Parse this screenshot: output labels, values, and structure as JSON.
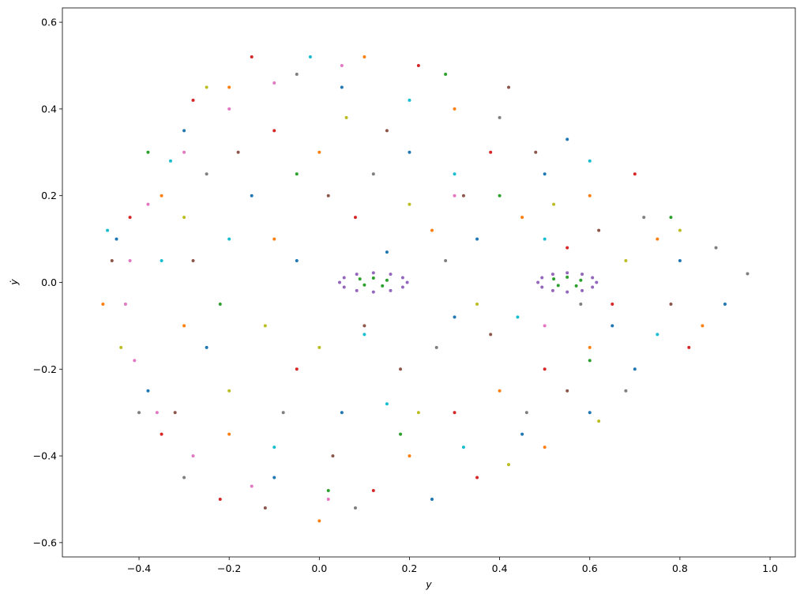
{
  "chart_data": {
    "type": "scatter",
    "xlabel": "y",
    "ylabel": "ẏ",
    "xlim": [
      -0.57,
      1.056
    ],
    "ylim": [
      -0.633,
      0.633
    ],
    "xticks": [
      {
        "value": -0.4,
        "label": "−0.4"
      },
      {
        "value": -0.2,
        "label": "−0.2"
      },
      {
        "value": 0,
        "label": "0.0"
      },
      0.2,
      0.4,
      0.6,
      0.8,
      {
        "value": 1,
        "label": "1.0"
      }
    ],
    "yticks": [
      {
        "value": -0.6,
        "label": "−0.6"
      },
      {
        "value": -0.4,
        "label": "−0.4"
      },
      {
        "value": -0.2,
        "label": "−0.2"
      },
      {
        "value": 0,
        "label": "0.0"
      },
      0.2,
      0.4,
      0.6
    ],
    "series": [
      {
        "color": "#1f77b4",
        "x": [
          -0.45,
          -0.3,
          -0.15,
          0.05,
          0.2,
          0.35,
          0.5,
          0.65,
          0.8,
          0.7,
          0.45,
          0.25,
          0.05,
          -0.1,
          -0.25,
          -0.38,
          0.15,
          0.3,
          0.55,
          -0.05,
          0.9,
          0.6
        ],
        "values": [
          0.1,
          0.35,
          0.2,
          0.45,
          0.3,
          0.1,
          0.25,
          -0.1,
          0.05,
          -0.2,
          -0.35,
          -0.5,
          -0.3,
          -0.45,
          -0.15,
          -0.25,
          0.07,
          -0.08,
          0.33,
          0.05,
          -0.05,
          -0.3
        ]
      },
      {
        "color": "#ff7f0e",
        "x": [
          -0.48,
          -0.35,
          -0.2,
          0,
          0.1,
          0.3,
          0.45,
          0.6,
          0.75,
          0.85,
          0.6,
          0.4,
          0.2,
          0,
          -0.2,
          -0.3,
          -0.1,
          0.25,
          0.5
        ],
        "values": [
          -0.05,
          0.2,
          0.45,
          0.3,
          0.52,
          0.4,
          0.15,
          0.2,
          0.1,
          -0.1,
          -0.15,
          -0.25,
          -0.4,
          -0.55,
          -0.35,
          -0.1,
          0.1,
          0.12,
          -0.38
        ]
      },
      {
        "color": "#2ca02c",
        "x": [
          0.09,
          0.12,
          0.15,
          0.14,
          0.1,
          0.52,
          0.55,
          0.58,
          0.57,
          0.53,
          -0.38,
          -0.22,
          -0.05,
          0.18,
          0.4,
          0.6,
          0.28,
          0.02,
          0.78
        ],
        "values": [
          0.008,
          0.01,
          0.005,
          -0.008,
          -0.006,
          0.008,
          0.012,
          0.005,
          -0.008,
          -0.007,
          0.3,
          -0.05,
          0.25,
          -0.35,
          0.2,
          -0.18,
          0.48,
          -0.48,
          0.15
        ]
      },
      {
        "color": "#d62728",
        "x": [
          -0.42,
          -0.28,
          -0.1,
          0.08,
          0.22,
          0.38,
          0.55,
          0.7,
          0.82,
          0.65,
          0.5,
          0.3,
          0.12,
          -0.05,
          -0.22,
          -0.35,
          0.35,
          -0.15
        ],
        "values": [
          0.15,
          0.42,
          0.35,
          0.15,
          0.5,
          0.3,
          0.08,
          0.25,
          -0.15,
          -0.05,
          -0.2,
          -0.3,
          -0.48,
          -0.2,
          -0.5,
          -0.35,
          -0.45,
          0.52
        ]
      },
      {
        "color": "#9467bd",
        "x": [
          0.195,
          0.185,
          0.158,
          0.12,
          0.083,
          0.055,
          0.045,
          0.055,
          0.083,
          0.12,
          0.158,
          0.185,
          0.615,
          0.606,
          0.583,
          0.55,
          0.518,
          0.494,
          0.485,
          0.494,
          0.518,
          0.55,
          0.583,
          0.606
        ],
        "values": [
          0,
          0.011,
          0.019,
          0.022,
          0.019,
          0.011,
          0,
          -0.011,
          -0.019,
          -0.022,
          -0.019,
          -0.011,
          0,
          0.011,
          0.019,
          0.022,
          0.019,
          0.011,
          0,
          -0.011,
          -0.019,
          -0.022,
          -0.019,
          -0.011
        ]
      },
      {
        "color": "#8c564b",
        "x": [
          -0.46,
          -0.32,
          -0.18,
          0.02,
          0.15,
          0.32,
          0.48,
          0.62,
          0.78,
          0.55,
          0.38,
          0.18,
          0.03,
          -0.12,
          -0.28,
          0.1,
          0.42
        ],
        "values": [
          0.05,
          -0.3,
          0.3,
          0.2,
          0.35,
          0.2,
          0.3,
          0.12,
          -0.05,
          -0.25,
          -0.12,
          -0.2,
          -0.4,
          -0.52,
          0.05,
          -0.1,
          0.45
        ]
      },
      {
        "color": "#e377c2",
        "x": [
          0.05,
          -0.1,
          -0.2,
          -0.3,
          -0.38,
          -0.42,
          -0.43,
          -0.41,
          -0.36,
          -0.28,
          -0.15,
          0.02,
          0.3,
          0.5
        ],
        "values": [
          0.5,
          0.46,
          0.4,
          0.3,
          0.18,
          0.05,
          -0.05,
          -0.18,
          -0.3,
          -0.4,
          -0.47,
          -0.5,
          0.2,
          -0.1
        ]
      },
      {
        "color": "#7f7f7f",
        "x": [
          -0.4,
          -0.25,
          -0.05,
          0.12,
          0.28,
          0.4,
          0.58,
          0.72,
          0.88,
          0.95,
          0.68,
          0.46,
          0.26,
          0.08,
          -0.08,
          -0.3
        ],
        "values": [
          -0.3,
          0.25,
          0.48,
          0.25,
          0.05,
          0.38,
          -0.05,
          0.15,
          0.08,
          0.02,
          -0.25,
          -0.3,
          -0.15,
          -0.52,
          -0.3,
          -0.45
        ]
      },
      {
        "color": "#bcbd22",
        "x": [
          -0.44,
          -0.3,
          -0.12,
          0.06,
          0.2,
          0.35,
          0.52,
          0.68,
          0.8,
          0.62,
          0.42,
          0.22,
          0,
          -0.2,
          -0.25
        ],
        "values": [
          -0.15,
          0.15,
          -0.1,
          0.38,
          0.18,
          -0.05,
          0.18,
          0.05,
          0.12,
          -0.32,
          -0.42,
          -0.3,
          -0.15,
          -0.25,
          0.45
        ]
      },
      {
        "color": "#17becf",
        "x": [
          -0.47,
          -0.35,
          -0.2,
          -0.02,
          0.15,
          0.3,
          0.44,
          0.6,
          0.75,
          0.5,
          0.32,
          0.1,
          -0.1,
          -0.33,
          0.2
        ],
        "values": [
          0.12,
          0.05,
          0.1,
          0.52,
          -0.28,
          0.25,
          -0.08,
          0.28,
          -0.12,
          0.1,
          -0.38,
          -0.12,
          -0.38,
          0.28,
          0.42
        ]
      }
    ]
  }
}
